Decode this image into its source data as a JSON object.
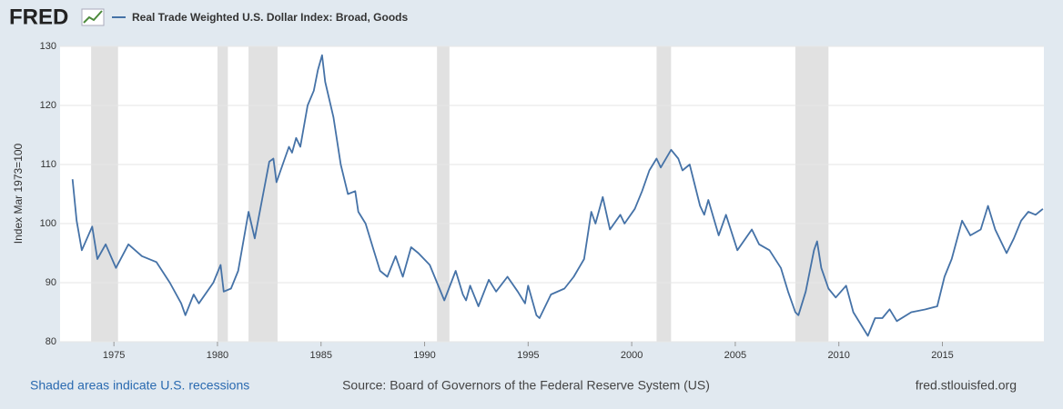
{
  "chart_data": {
    "type": "line",
    "logo": "FRED",
    "y_label": "Index Mar 1973=100",
    "footer_left": "Shaded areas indicate U.S. recessions",
    "footer_center": "Source: Board of Governors of the Federal Reserve System (US)",
    "footer_right": "fred.stlouisfed.org",
    "xlim": [
      1972.4,
      2019.9
    ],
    "xticks": [
      1975,
      1980,
      1985,
      1990,
      1995,
      2000,
      2005,
      2010,
      2015
    ],
    "ylim": [
      80,
      130
    ],
    "yticks": [
      80,
      90,
      100,
      110,
      120,
      130
    ],
    "grid": true,
    "recessions": [
      [
        1973.9,
        1975.2
      ],
      [
        1980.0,
        1980.5
      ],
      [
        1981.5,
        1982.9
      ],
      [
        1990.6,
        1991.2
      ],
      [
        2001.2,
        2001.9
      ],
      [
        2007.9,
        2009.5
      ]
    ],
    "recession_color": "#e1e1e1",
    "x": [
      1973.0,
      1973.2,
      1973.45,
      1973.95,
      1974.2,
      1974.6,
      1975.1,
      1975.7,
      1976.35,
      1977.05,
      1977.7,
      1978.25,
      1978.45,
      1978.85,
      1979.1,
      1979.8,
      1980.15,
      1980.3,
      1980.65,
      1981.0,
      1981.35,
      1981.5,
      1981.8,
      1982.15,
      1982.5,
      1982.7,
      1982.85,
      1983.25,
      1983.45,
      1983.6,
      1983.8,
      1984.0,
      1984.35,
      1984.65,
      1984.85,
      1985.05,
      1985.2,
      1985.6,
      1985.95,
      1986.3,
      1986.65,
      1986.8,
      1987.15,
      1987.5,
      1987.85,
      1988.2,
      1988.6,
      1988.95,
      1989.35,
      1989.7,
      1990.25,
      1990.6,
      1990.95,
      1991.5,
      1991.85,
      1992.0,
      1992.2,
      1992.6,
      1993.1,
      1993.45,
      1994.0,
      1994.5,
      1994.85,
      1995.0,
      1995.4,
      1995.55,
      1996.1,
      1996.75,
      1997.2,
      1997.7,
      1998.05,
      1998.25,
      1998.6,
      1998.95,
      1999.45,
      1999.65,
      2000.15,
      2000.5,
      2000.85,
      2001.2,
      2001.4,
      2001.9,
      2002.25,
      2002.45,
      2002.8,
      2003.3,
      2003.5,
      2003.7,
      2004.2,
      2004.55,
      2005.1,
      2005.8,
      2006.15,
      2006.65,
      2007.2,
      2007.55,
      2007.9,
      2008.05,
      2008.4,
      2008.8,
      2008.95,
      2009.15,
      2009.5,
      2009.85,
      2010.35,
      2010.7,
      2011.05,
      2011.4,
      2011.75,
      2012.1,
      2012.45,
      2012.8,
      2013.5,
      2014.2,
      2014.75,
      2015.1,
      2015.45,
      2015.95,
      2016.35,
      2016.85,
      2017.2,
      2017.55,
      2018.1,
      2018.45,
      2018.8,
      2019.15,
      2019.5,
      2019.85
    ],
    "series": [
      {
        "name": "Real Trade Weighted U.S. Dollar Index: Broad, Goods",
        "color": "#4572a7",
        "values": [
          107.5,
          100.5,
          95.5,
          99.5,
          94,
          96.5,
          92.5,
          96.5,
          94.5,
          93.5,
          90,
          86.5,
          84.5,
          88,
          86.5,
          90,
          93,
          88.5,
          89,
          92,
          99,
          102,
          97.5,
          104,
          110.5,
          111,
          107,
          111,
          113,
          112,
          114.5,
          113,
          120,
          122.5,
          126,
          128.5,
          124,
          118,
          110,
          105,
          105.5,
          102,
          100,
          96,
          92,
          91,
          94.5,
          91,
          96,
          95,
          93,
          90,
          87,
          92,
          88,
          87,
          89.5,
          86,
          90.5,
          88.5,
          91,
          88.5,
          86.5,
          89.5,
          84.5,
          84,
          88,
          89,
          91,
          94,
          102,
          100,
          104.5,
          99,
          101.5,
          100,
          102.5,
          105.5,
          109,
          111,
          109.5,
          112.5,
          111,
          109,
          110,
          103,
          101.5,
          104,
          98,
          101.5,
          95.5,
          99,
          96.5,
          95.5,
          92.5,
          88.5,
          85,
          84.5,
          88.5,
          95.5,
          97,
          92.5,
          89,
          87.5,
          89.5,
          85,
          83,
          81,
          84,
          84,
          85.5,
          83.5,
          85,
          85.5,
          86,
          91,
          94,
          100.5,
          98,
          99,
          103,
          99,
          95,
          97.5,
          100.5,
          102,
          101.5,
          102.5
        ]
      }
    ]
  }
}
